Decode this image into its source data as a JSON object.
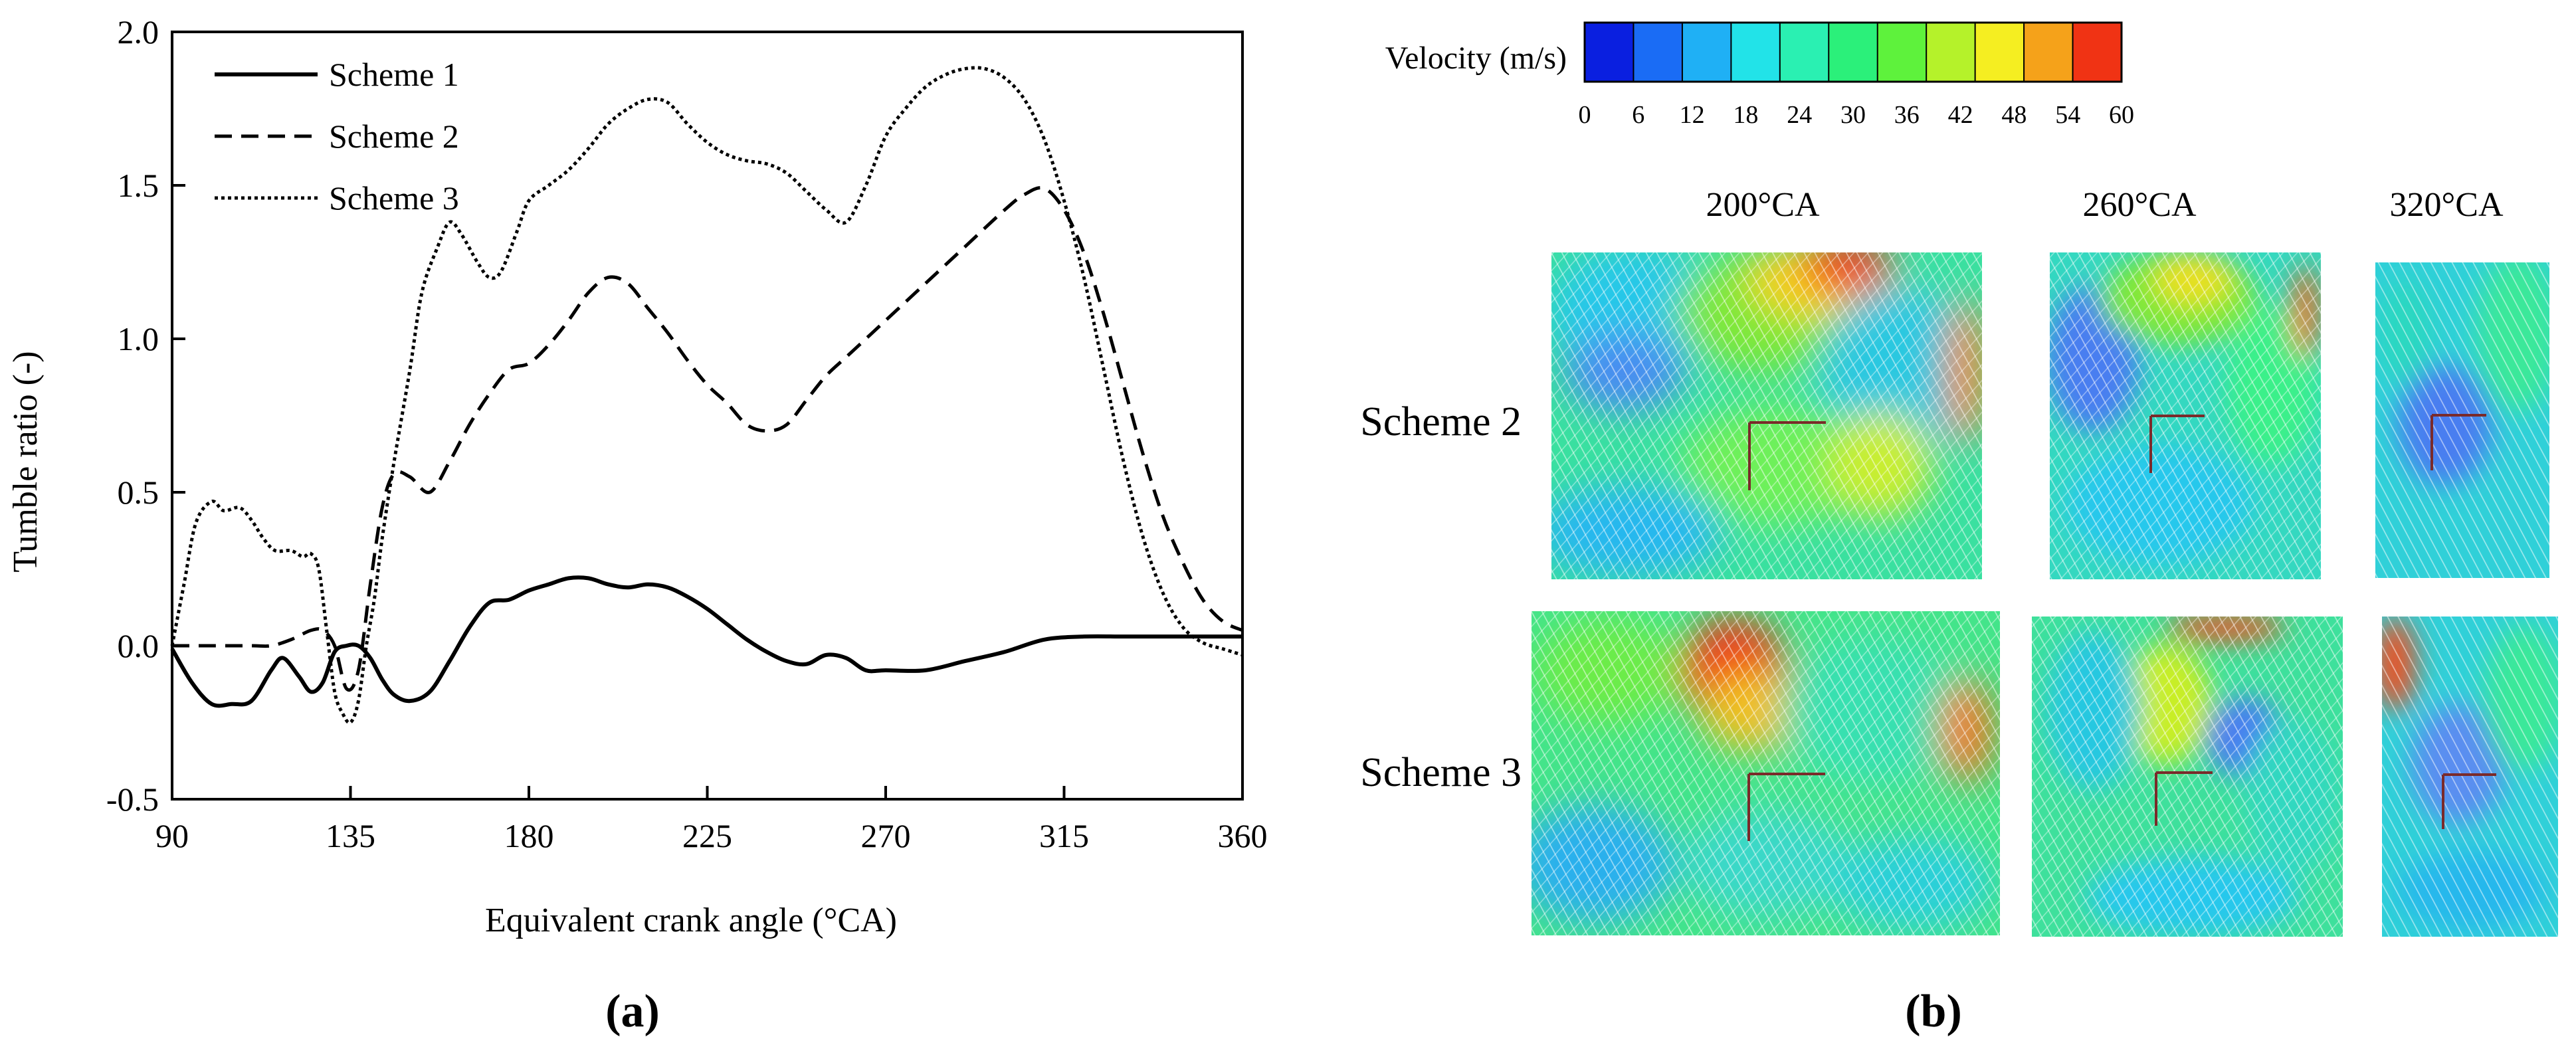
{
  "panel_a": {
    "label": "a",
    "chart_data": {
      "type": "line",
      "xlabel": "Equivalent crank angle (°CA)",
      "ylabel": "Tumble ratio (-)",
      "xlim": [
        90,
        360
      ],
      "ylim": [
        -0.5,
        2.0
      ],
      "xticks": [
        90,
        135,
        180,
        225,
        270,
        315,
        360
      ],
      "yticks": [
        -0.5,
        0.0,
        0.5,
        1.0,
        1.5,
        2.0
      ],
      "xtick_labels": [
        "90",
        "135",
        "180",
        "225",
        "270",
        "315",
        "360"
      ],
      "ytick_labels": [
        "-0.5",
        "0.0",
        "0.5",
        "1.0",
        "1.5",
        "2.0"
      ],
      "grid": false,
      "legend_position": "top-left",
      "series": [
        {
          "name": "Scheme 1",
          "style": "solid",
          "x": [
            90,
            95,
            100,
            105,
            110,
            115,
            118,
            122,
            125,
            128,
            131,
            134,
            137,
            140,
            143,
            146,
            150,
            155,
            160,
            165,
            170,
            175,
            180,
            185,
            190,
            195,
            200,
            205,
            210,
            215,
            220,
            225,
            230,
            235,
            240,
            245,
            250,
            255,
            260,
            265,
            270,
            280,
            290,
            300,
            310,
            320,
            330,
            340,
            350,
            360
          ],
          "y": [
            -0.01,
            -0.12,
            -0.19,
            -0.19,
            -0.18,
            -0.08,
            -0.04,
            -0.1,
            -0.15,
            -0.12,
            -0.02,
            0.0,
            0.0,
            -0.04,
            -0.11,
            -0.16,
            -0.18,
            -0.15,
            -0.05,
            0.06,
            0.14,
            0.15,
            0.18,
            0.2,
            0.22,
            0.22,
            0.2,
            0.19,
            0.2,
            0.19,
            0.16,
            0.12,
            0.07,
            0.02,
            -0.02,
            -0.05,
            -0.06,
            -0.03,
            -0.04,
            -0.08,
            -0.08,
            -0.08,
            -0.05,
            -0.02,
            0.02,
            0.03,
            0.03,
            0.03,
            0.03,
            0.03
          ]
        },
        {
          "name": "Scheme 2",
          "style": "dashed",
          "x": [
            90,
            100,
            110,
            115,
            120,
            125,
            128,
            131,
            134,
            137,
            140,
            143,
            146,
            150,
            155,
            160,
            165,
            170,
            175,
            180,
            185,
            190,
            195,
            200,
            205,
            210,
            215,
            220,
            225,
            230,
            235,
            240,
            245,
            250,
            255,
            260,
            265,
            270,
            280,
            290,
            300,
            305,
            310,
            315,
            320,
            325,
            330,
            335,
            340,
            345,
            350,
            355,
            360
          ],
          "y": [
            0.0,
            0.0,
            0.0,
            0.0,
            0.02,
            0.05,
            0.05,
            0.0,
            -0.14,
            -0.08,
            0.2,
            0.45,
            0.56,
            0.55,
            0.5,
            0.6,
            0.72,
            0.82,
            0.9,
            0.92,
            0.98,
            1.06,
            1.15,
            1.2,
            1.18,
            1.1,
            1.02,
            0.93,
            0.85,
            0.79,
            0.72,
            0.7,
            0.72,
            0.8,
            0.88,
            0.94,
            1.0,
            1.06,
            1.18,
            1.3,
            1.42,
            1.47,
            1.49,
            1.42,
            1.28,
            1.08,
            0.85,
            0.62,
            0.42,
            0.27,
            0.15,
            0.08,
            0.05
          ]
        },
        {
          "name": "Scheme 3",
          "style": "dotted",
          "x": [
            90,
            93,
            96,
            100,
            103,
            107,
            110,
            113,
            116,
            120,
            123,
            125,
            127,
            129,
            131,
            133,
            135,
            137,
            139,
            141,
            143,
            146,
            150,
            153,
            157,
            160,
            163,
            167,
            170,
            173,
            177,
            180,
            185,
            190,
            195,
            200,
            205,
            210,
            215,
            220,
            225,
            230,
            235,
            240,
            245,
            250,
            255,
            260,
            265,
            270,
            275,
            280,
            285,
            290,
            295,
            300,
            305,
            310,
            315,
            320,
            325,
            330,
            335,
            340,
            345,
            350,
            355,
            360
          ],
          "y": [
            0.0,
            0.2,
            0.4,
            0.47,
            0.44,
            0.45,
            0.41,
            0.35,
            0.31,
            0.31,
            0.29,
            0.3,
            0.25,
            0.05,
            -0.15,
            -0.22,
            -0.25,
            -0.18,
            0.0,
            0.15,
            0.35,
            0.6,
            0.9,
            1.15,
            1.3,
            1.38,
            1.34,
            1.25,
            1.2,
            1.22,
            1.35,
            1.45,
            1.5,
            1.55,
            1.62,
            1.7,
            1.75,
            1.78,
            1.77,
            1.7,
            1.64,
            1.6,
            1.58,
            1.57,
            1.54,
            1.48,
            1.42,
            1.38,
            1.5,
            1.66,
            1.75,
            1.82,
            1.86,
            1.88,
            1.88,
            1.85,
            1.78,
            1.65,
            1.45,
            1.2,
            0.9,
            0.6,
            0.35,
            0.17,
            0.06,
            0.01,
            -0.01,
            -0.03
          ]
        }
      ]
    }
  },
  "panel_b": {
    "label": "b",
    "colorbar": {
      "title": "Velocity (m/s)",
      "ticks": [
        "0",
        "6",
        "12",
        "18",
        "24",
        "30",
        "36",
        "42",
        "48",
        "54",
        "60"
      ],
      "colors": [
        "#0a1fe0",
        "#1a6cf5",
        "#1fb0f5",
        "#22e3e8",
        "#2af0b2",
        "#2bf07a",
        "#5ef23c",
        "#b5f22a",
        "#f5ee21",
        "#f5a21a",
        "#f03314"
      ]
    },
    "column_headers": [
      "200°CA",
      "260°CA",
      "320°CA"
    ],
    "row_labels": [
      "Scheme 2",
      "Scheme 3"
    ]
  }
}
